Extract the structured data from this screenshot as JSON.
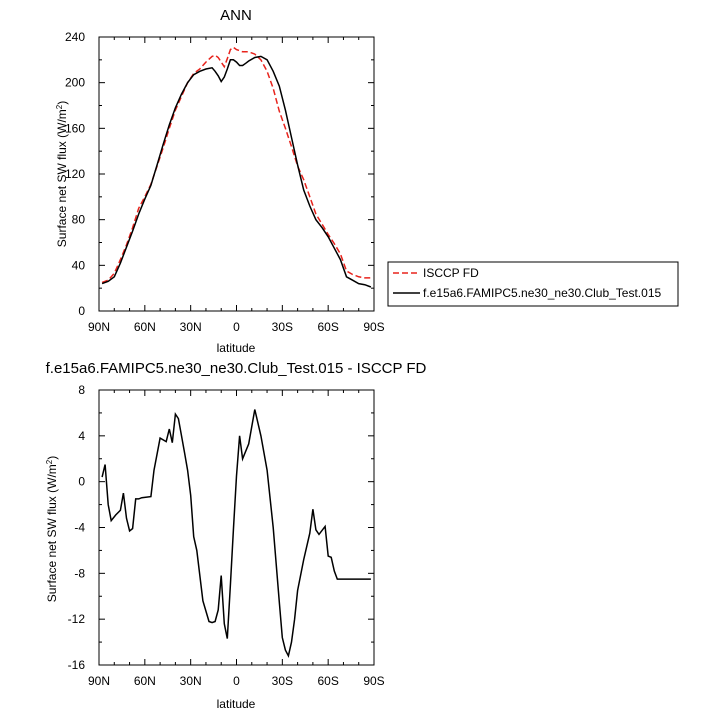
{
  "chart_data": [
    {
      "type": "line",
      "title": "ANN",
      "ylabel": "Surface net SW flux (W/m",
      "ylabel_sup": "2",
      "ylabel_close": ")",
      "xlabel": "latitude",
      "xlim": [
        90,
        -90
      ],
      "ylim": [
        0,
        240
      ],
      "xticks": [
        90,
        60,
        30,
        0,
        -30,
        -60,
        -90
      ],
      "xtick_labels": [
        "90N",
        "60N",
        "30N",
        "0",
        "30S",
        "60S",
        "90S"
      ],
      "yticks": [
        0,
        40,
        80,
        120,
        160,
        200,
        240
      ],
      "ytick_labels": [
        "0",
        "40",
        "80",
        "120",
        "160",
        "200",
        "240"
      ],
      "legend_position": "right",
      "series": [
        {
          "name": "ISCCP FD",
          "color": "#e8231c",
          "dash": "dashed",
          "x": [
            88,
            84,
            80,
            76,
            72,
            68,
            64,
            60,
            56,
            52,
            48,
            44,
            40,
            36,
            32,
            28,
            24,
            20,
            16,
            14,
            12,
            10,
            8,
            6,
            4,
            2,
            0,
            -2,
            -4,
            -6,
            -8,
            -12,
            -16,
            -20,
            -24,
            -28,
            -32,
            -36,
            -40,
            -44,
            -48,
            -52,
            -56,
            -60,
            -64,
            -68,
            -72,
            -76,
            -80,
            -84,
            -88
          ],
          "y": [
            25,
            27,
            33,
            45,
            58,
            73,
            90,
            100,
            111,
            127,
            143,
            160,
            176,
            188,
            200,
            208,
            212,
            218,
            223,
            224,
            222,
            218,
            214,
            221,
            229,
            231,
            229,
            228,
            227,
            227,
            227,
            225,
            220,
            210,
            195,
            175,
            160,
            144,
            127,
            115,
            100,
            85,
            76,
            67,
            59,
            50,
            35,
            32,
            30,
            29,
            29
          ]
        },
        {
          "name": "f.e15a6.FAMIPC5.ne30_ne30.Club_Test.015",
          "color": "#000000",
          "dash": "solid",
          "x": [
            88,
            84,
            80,
            76,
            72,
            68,
            64,
            60,
            56,
            52,
            48,
            44,
            40,
            36,
            32,
            28,
            24,
            20,
            16,
            14,
            12,
            10,
            8,
            6,
            4,
            2,
            0,
            -2,
            -4,
            -6,
            -8,
            -12,
            -16,
            -20,
            -24,
            -28,
            -32,
            -36,
            -40,
            -44,
            -48,
            -52,
            -56,
            -60,
            -64,
            -68,
            -72,
            -76,
            -80,
            -84,
            -88
          ],
          "y": [
            24,
            26,
            30,
            42,
            56,
            70,
            85,
            98,
            110,
            128,
            146,
            163,
            178,
            190,
            200,
            207,
            210,
            212,
            213,
            210,
            206,
            201,
            205,
            212,
            220,
            220,
            218,
            215,
            215,
            217,
            219,
            222,
            223,
            220,
            210,
            197,
            176,
            152,
            128,
            106,
            92,
            80,
            73,
            65,
            55,
            45,
            30,
            27,
            24,
            23,
            21
          ]
        }
      ]
    },
    {
      "type": "line",
      "title": "f.e15a6.FAMIPC5.ne30_ne30.Club_Test.015 - ISCCP FD",
      "ylabel": "Surface net SW flux (W/m",
      "ylabel_sup": "2",
      "ylabel_close": ")",
      "xlabel": "latitude",
      "xlim": [
        90,
        -90
      ],
      "ylim": [
        -16,
        8
      ],
      "xticks": [
        90,
        60,
        30,
        0,
        -30,
        -60,
        -90
      ],
      "xtick_labels": [
        "90N",
        "60N",
        "30N",
        "0",
        "30S",
        "60S",
        "90S"
      ],
      "yticks": [
        -16,
        -12,
        -8,
        -4,
        0,
        4,
        8
      ],
      "ytick_labels": [
        "-16",
        "-12",
        "-8",
        "-4",
        "0",
        "4",
        "8"
      ],
      "series": [
        {
          "color": "#000000",
          "dash": "solid",
          "x": [
            88,
            86,
            84,
            82,
            79,
            76,
            74,
            72,
            70,
            68,
            66,
            64,
            62,
            56,
            54,
            50,
            46,
            44,
            42,
            40,
            38,
            36,
            34,
            32,
            30,
            28,
            26,
            22,
            18,
            16,
            14,
            12,
            10,
            8,
            6,
            4,
            2,
            0,
            -2,
            -4,
            -8,
            -12,
            -16,
            -20,
            -24,
            -28,
            -30,
            -32,
            -34,
            -36,
            -38,
            -40,
            -44,
            -48,
            -50,
            -52,
            -54,
            -58,
            -60,
            -62,
            -64,
            -66,
            -68,
            -72,
            -74,
            -76,
            -78,
            -80,
            -82,
            -86,
            -88
          ],
          "y": [
            0.4,
            1.5,
            -2.0,
            -3.4,
            -2.9,
            -2.5,
            -1.0,
            -3.2,
            -4.3,
            -4.1,
            -1.5,
            -1.5,
            -1.4,
            -1.3,
            1.0,
            3.8,
            3.5,
            4.6,
            3.4,
            5.9,
            5.5,
            4.0,
            2.5,
            1.0,
            -1.2,
            -4.8,
            -6.0,
            -10.4,
            -12.2,
            -12.3,
            -12.2,
            -11.2,
            -8.2,
            -12.4,
            -13.7,
            -9.0,
            -4.2,
            0.5,
            4.0,
            2.0,
            3.3,
            6.3,
            4.0,
            1.0,
            -4.0,
            -10.5,
            -13.6,
            -14.7,
            -15.2,
            -14.0,
            -12.0,
            -9.5,
            -6.8,
            -4.5,
            -2.4,
            -4.2,
            -4.6,
            -3.9,
            -6.5,
            -6.6,
            -7.8,
            -8.5,
            -8.5,
            -8.5,
            -8.5,
            -8.5,
            -8.5,
            -8.5,
            -8.5,
            -8.5,
            -8.5
          ]
        }
      ]
    }
  ]
}
